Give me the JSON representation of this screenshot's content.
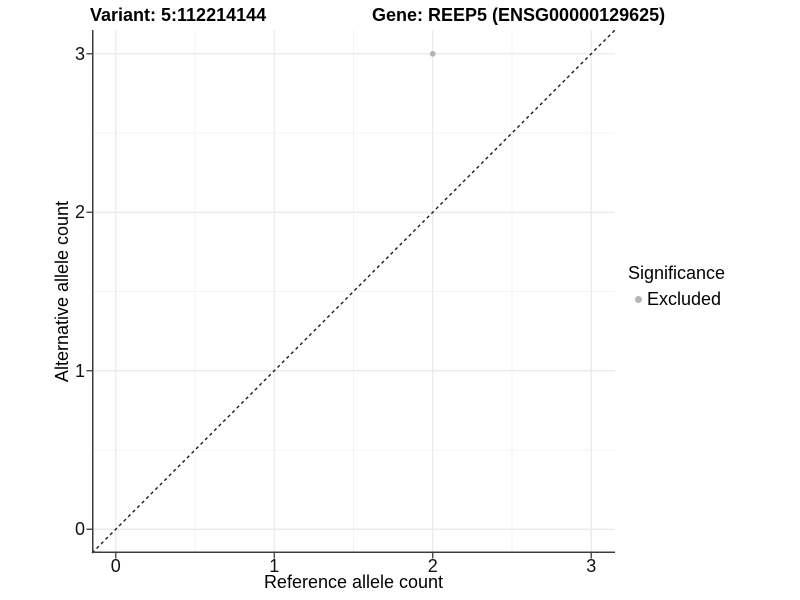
{
  "chart_data": {
    "type": "scatter",
    "title_left": "Variant: 5:112214144",
    "title_right": "Gene: REEP5 (ENSG00000129625)",
    "xlabel": "Reference allele count",
    "ylabel": "Alternative allele count",
    "xlim": [
      -0.15,
      3.15
    ],
    "ylim": [
      -0.15,
      3.15
    ],
    "x_ticks": [
      0,
      1,
      2,
      3
    ],
    "y_ticks": [
      0,
      1,
      2,
      3
    ],
    "x_minor_ticks": [
      0.5,
      1.5,
      2.5
    ],
    "y_minor_ticks": [
      0.5,
      1.5,
      2.5
    ],
    "grid": "major+minor",
    "series": [
      {
        "name": "Excluded",
        "color": "#b5b5b5",
        "points": [
          {
            "x": 2,
            "y": 3
          }
        ]
      }
    ],
    "reference_line": {
      "type": "identity",
      "equation": "y = x",
      "style": "dashed",
      "color": "#1a1a1a"
    },
    "legend": {
      "title": "Significance",
      "position": "right",
      "entries": [
        {
          "label": "Excluded",
          "color": "#b5b5b5",
          "marker": "circle"
        }
      ]
    },
    "colors": {
      "background": "#ffffff",
      "grid_major": "#e9e9e9",
      "grid_minor": "#f3f3f3",
      "axis_line": "#3c3c3c",
      "text": "#000000"
    }
  }
}
